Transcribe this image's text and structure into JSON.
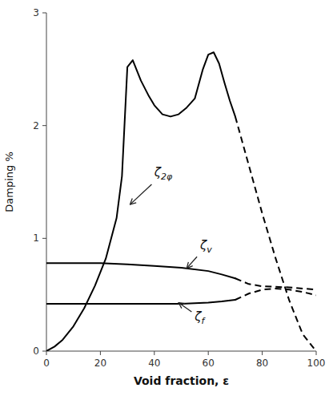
{
  "chart_data": {
    "type": "line",
    "xlabel": "Void fraction, ε",
    "ylabel": "Damping %",
    "xlim": [
      0,
      100
    ],
    "ylim": [
      0,
      3
    ],
    "xticks": [
      0,
      20,
      40,
      60,
      80,
      100
    ],
    "yticks": [
      0,
      1,
      2,
      3
    ],
    "series": [
      {
        "color": "#000000",
        "line_style": "solid",
        "x": [
          0,
          3,
          6,
          10,
          14,
          18,
          22,
          26,
          28,
          30,
          32,
          35,
          38,
          40,
          43,
          46,
          49,
          52,
          55,
          58,
          60,
          62,
          64,
          66,
          68,
          70
        ],
        "values": [
          0,
          0.04,
          0.1,
          0.22,
          0.38,
          0.58,
          0.82,
          1.18,
          1.55,
          2.52,
          2.58,
          2.4,
          2.26,
          2.18,
          2.1,
          2.08,
          2.1,
          2.16,
          2.24,
          2.5,
          2.63,
          2.65,
          2.55,
          2.38,
          2.22,
          2.08
        ]
      },
      {
        "color": "#000000",
        "line_style": "dashed",
        "x": [
          70,
          75,
          80,
          85,
          90,
          95,
          100
        ],
        "values": [
          2.08,
          1.65,
          1.22,
          0.82,
          0.45,
          0.15,
          0.0
        ]
      },
      {
        "color": "#000000",
        "line_style": "solid",
        "x": [
          0,
          10,
          20,
          30,
          40,
          50,
          60,
          65,
          70
        ],
        "values": [
          0.78,
          0.78,
          0.78,
          0.77,
          0.755,
          0.74,
          0.71,
          0.68,
          0.645
        ]
      },
      {
        "color": "#000000",
        "line_style": "dashed",
        "x": [
          70,
          75,
          80,
          85,
          90,
          95,
          100
        ],
        "values": [
          0.645,
          0.595,
          0.575,
          0.57,
          0.565,
          0.555,
          0.545
        ]
      },
      {
        "color": "#000000",
        "line_style": "solid",
        "x": [
          0,
          10,
          20,
          30,
          40,
          50,
          60,
          65,
          70
        ],
        "values": [
          0.42,
          0.42,
          0.42,
          0.42,
          0.42,
          0.42,
          0.43,
          0.44,
          0.455
        ]
      },
      {
        "color": "#000000",
        "line_style": "dashed",
        "x": [
          70,
          75,
          80,
          85,
          90,
          95,
          100
        ],
        "values": [
          0.455,
          0.51,
          0.545,
          0.555,
          0.545,
          0.525,
          0.495
        ]
      }
    ],
    "annotations": [
      {
        "text": "ζ2φ",
        "x": 40,
        "y": 1.55,
        "arrow_x": 31,
        "arrow_y": 1.3
      },
      {
        "text": "ζv",
        "x": 57,
        "y": 0.9,
        "arrow_x": 52,
        "arrow_y": 0.735
      },
      {
        "text": "ζf",
        "x": 55,
        "y": 0.27,
        "arrow_x": 49,
        "arrow_y": 0.43
      }
    ]
  }
}
